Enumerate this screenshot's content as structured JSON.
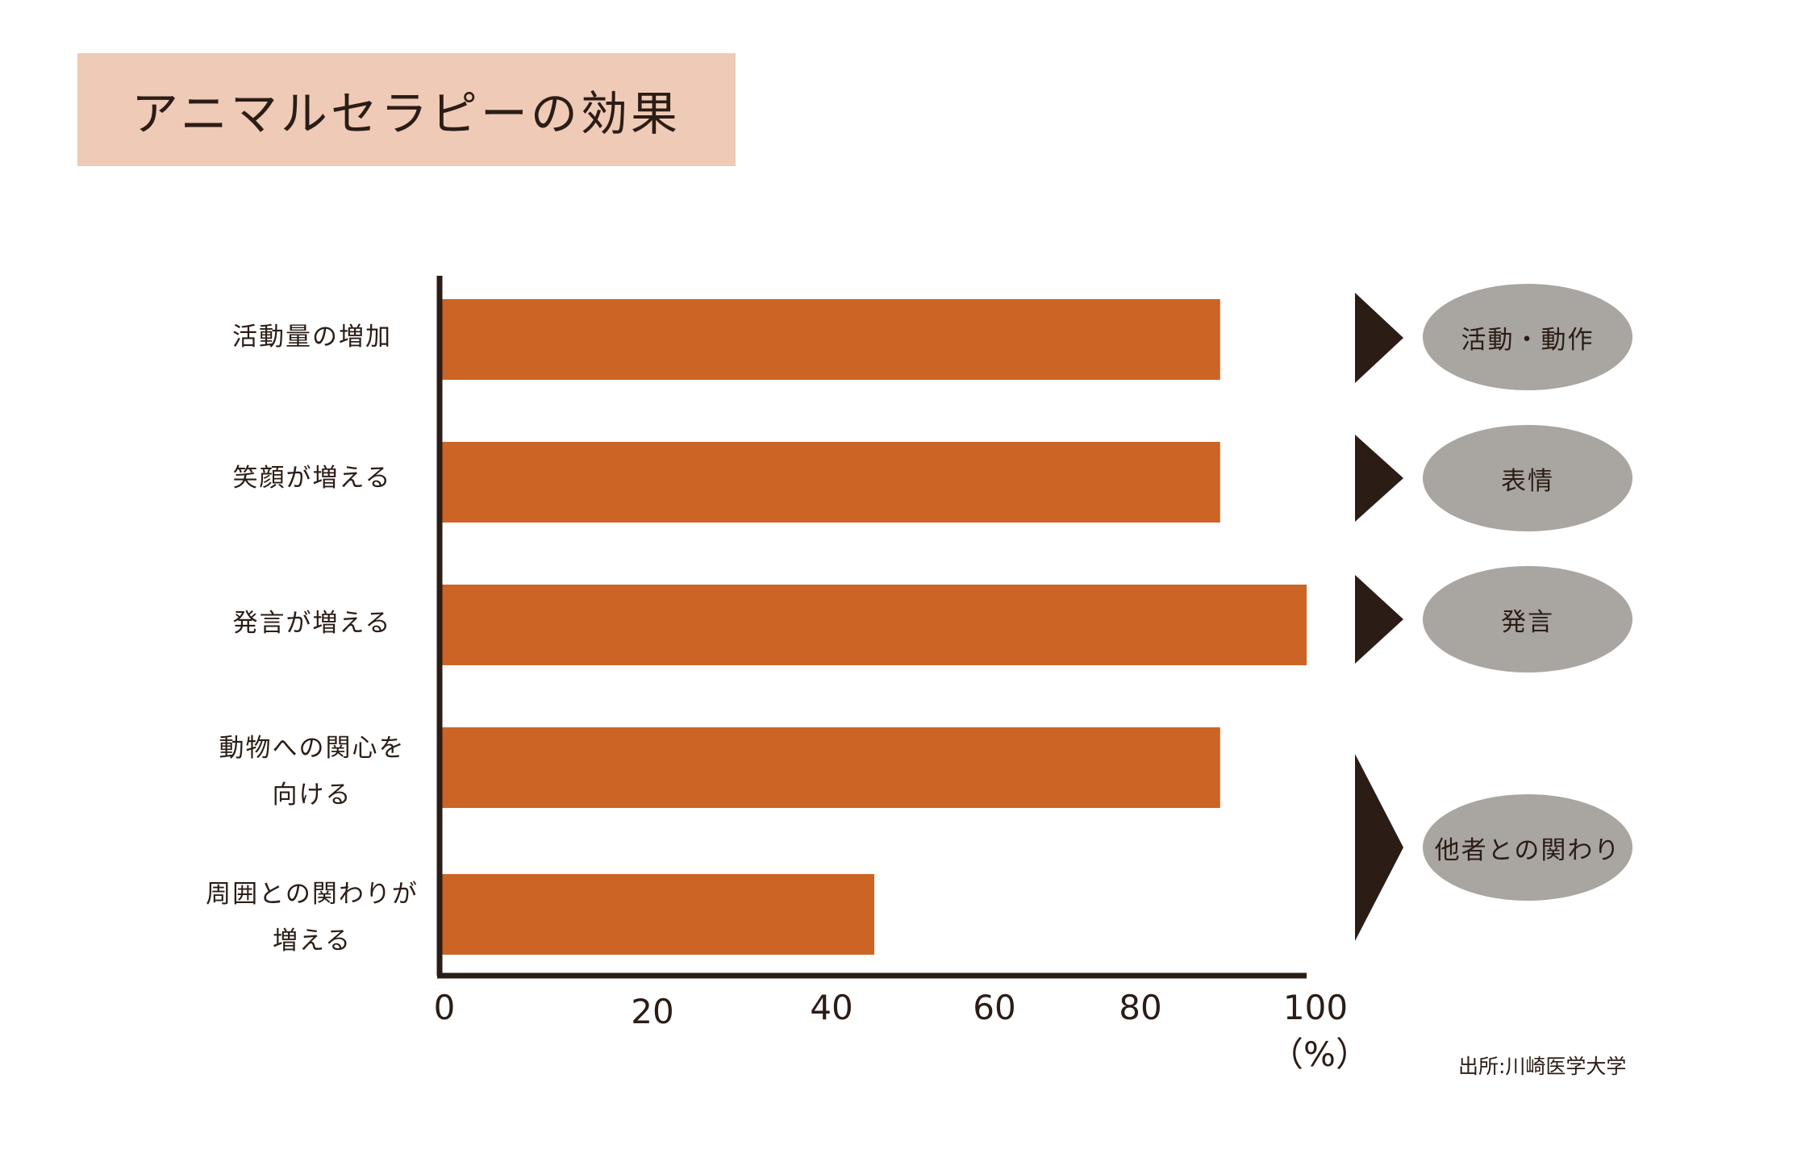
{
  "title": "アニマルセラピーの効果",
  "chart_data": {
    "type": "bar",
    "orientation": "horizontal",
    "title": "アニマルセラピーの効果",
    "categories": [
      "活動量の増加",
      "笑顔が増える",
      "発言が増える",
      "動物への関心を\n向ける",
      "周囲との関わりが\n増える"
    ],
    "values": [
      90,
      90,
      100,
      90,
      50
    ],
    "xlim": [
      0,
      100
    ],
    "xticks": [
      "0",
      "20",
      "40",
      "60",
      "80",
      "100"
    ],
    "xunit": "（%）",
    "bar_color": "#cc6425",
    "axis_color": "#2b1d16",
    "grid": false
  },
  "groups": [
    {
      "label": "活動・動作"
    },
    {
      "label": "表情"
    },
    {
      "label": "発言"
    },
    {
      "label": "他者との関わり"
    }
  ],
  "source": "出所:川崎医学大学",
  "colors": {
    "title_bg": "#efcab6",
    "oval": "#a9a5a0",
    "arrow": "#2b1d16"
  }
}
